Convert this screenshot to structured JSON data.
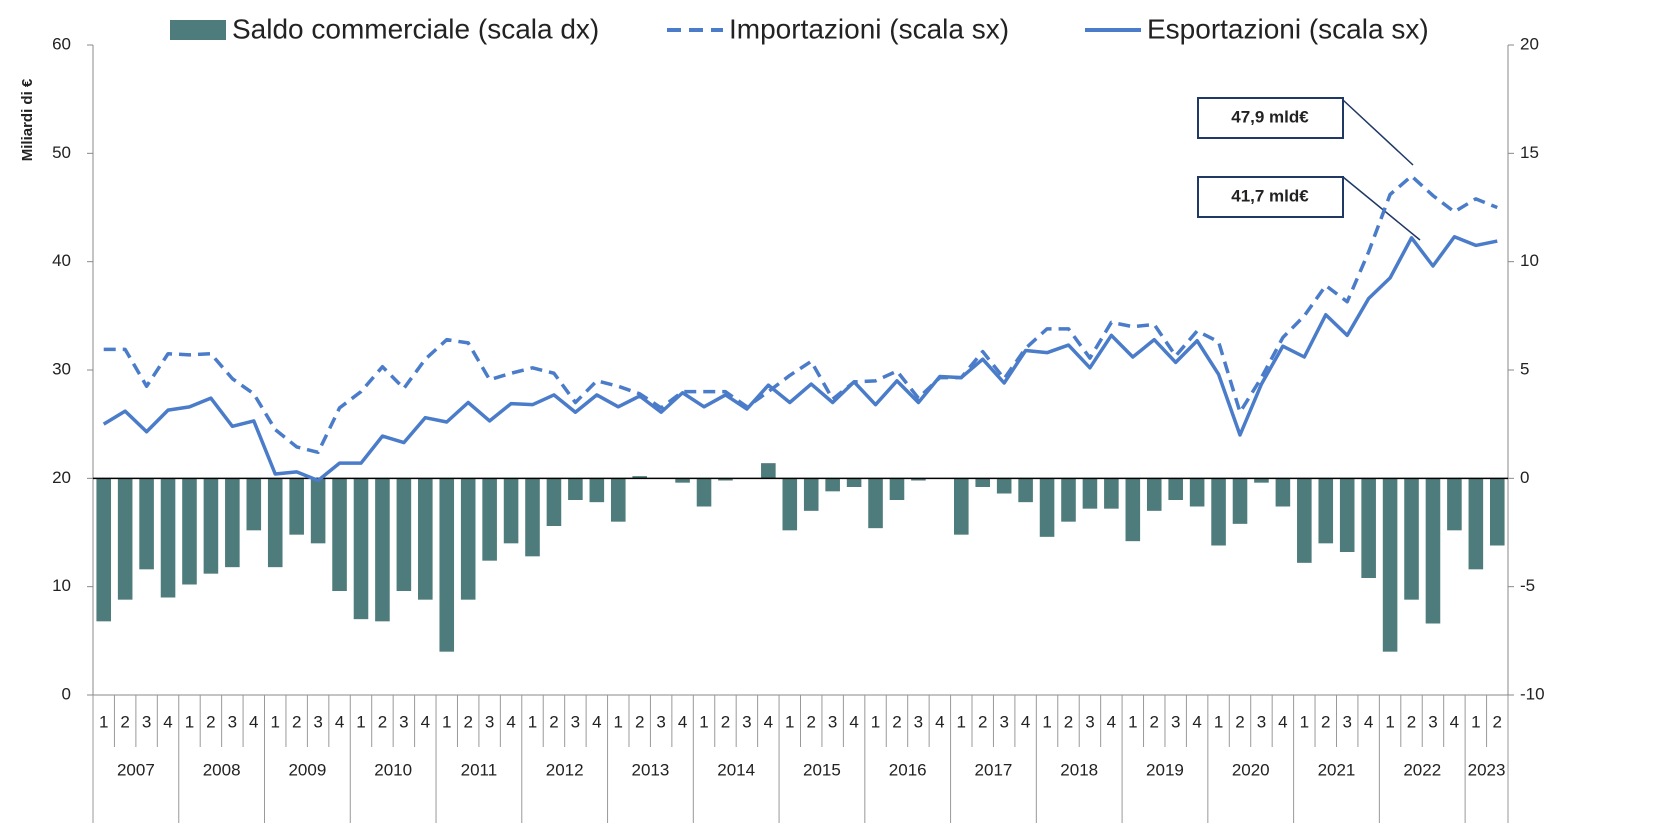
{
  "chart_data": {
    "type": "combo",
    "y_label": "Miliardi di €",
    "categories": [
      "1",
      "2",
      "3",
      "4",
      "1",
      "2",
      "3",
      "4",
      "1",
      "2",
      "3",
      "4",
      "1",
      "2",
      "3",
      "4",
      "1",
      "2",
      "3",
      "4",
      "1",
      "2",
      "3",
      "4",
      "1",
      "2",
      "3",
      "4",
      "1",
      "2",
      "3",
      "4",
      "1",
      "2",
      "3",
      "4",
      "1",
      "2",
      "3",
      "4",
      "1",
      "2",
      "3",
      "4",
      "1",
      "2",
      "3",
      "4",
      "1",
      "2",
      "3",
      "4",
      "1",
      "2",
      "3",
      "4",
      "1",
      "2",
      "3",
      "4",
      "1",
      "2",
      "3",
      "4",
      "1",
      "2"
    ],
    "years": [
      "2007",
      "2008",
      "2009",
      "2010",
      "2011",
      "2012",
      "2013",
      "2014",
      "2015",
      "2016",
      "2017",
      "2018",
      "2019",
      "2020",
      "2021",
      "2022",
      "2023"
    ],
    "series": [
      {
        "name": "Saldo commerciale (scala dx)",
        "type": "bar",
        "axis": "y2",
        "color": "#4e7b7b",
        "values": [
          -6.6,
          -5.6,
          -4.2,
          -5.5,
          -4.9,
          -4.4,
          -4.1,
          -2.4,
          -4.1,
          -2.6,
          -3.0,
          -5.2,
          -6.5,
          -6.6,
          -5.2,
          -5.6,
          -8.0,
          -5.6,
          -3.8,
          -3.0,
          -3.6,
          -2.2,
          -1.0,
          -1.1,
          -2.0,
          0.1,
          0.0,
          -0.2,
          -1.3,
          -0.1,
          0.0,
          0.7,
          -2.4,
          -1.5,
          -0.6,
          -0.4,
          -2.3,
          -1.0,
          -0.1,
          0.0,
          -2.6,
          -0.4,
          -0.7,
          -1.1,
          -2.7,
          -2.0,
          -1.4,
          -1.4,
          -2.9,
          -1.5,
          -1.0,
          -1.3,
          -3.1,
          -2.1,
          -0.2,
          -1.3,
          -3.9,
          -3.0,
          -3.4,
          -4.6,
          -8.0,
          -5.6,
          -6.7,
          -2.4,
          -4.2,
          -3.1
        ]
      },
      {
        "name": "Importazioni (scala sx)",
        "type": "line",
        "dashed": true,
        "color": "#4a7cc9",
        "values": [
          31.9,
          31.9,
          28.5,
          31.5,
          31.4,
          31.5,
          29.2,
          27.8,
          24.5,
          22.9,
          22.4,
          26.5,
          28.0,
          30.3,
          28.3,
          31.0,
          32.8,
          32.5,
          29.1,
          29.7,
          30.2,
          29.7,
          27.0,
          29.0,
          28.5,
          27.8,
          26.5,
          28.0,
          28.0,
          28.0,
          26.6,
          28.0,
          29.5,
          30.8,
          27.3,
          28.9,
          29.0,
          29.9,
          27.4,
          29.3,
          29.3,
          31.7,
          29.2,
          32.0,
          33.8,
          33.8,
          31.1,
          34.4,
          34.0,
          34.2,
          31.3,
          33.6,
          32.6,
          26.1,
          29.3,
          33.0,
          35.0,
          37.8,
          36.3,
          40.9,
          46.2,
          47.9,
          46.1,
          44.6,
          45.8,
          45.0
        ]
      },
      {
        "name": "Esportazioni (scala sx)",
        "type": "line",
        "dashed": false,
        "color": "#4a7cc9",
        "values": [
          25.0,
          26.2,
          24.3,
          26.3,
          26.6,
          27.4,
          24.8,
          25.3,
          20.4,
          20.6,
          19.8,
          21.4,
          21.4,
          23.9,
          23.3,
          25.6,
          25.2,
          27.0,
          25.3,
          26.9,
          26.8,
          27.7,
          26.1,
          27.7,
          26.6,
          27.6,
          26.1,
          27.9,
          26.6,
          27.7,
          26.4,
          28.6,
          27.0,
          28.7,
          27.0,
          28.9,
          26.8,
          29.0,
          27.0,
          29.4,
          29.3,
          31.0,
          28.8,
          31.8,
          31.6,
          32.3,
          30.2,
          33.2,
          31.2,
          32.8,
          30.7,
          32.7,
          29.6,
          24.0,
          28.7,
          32.2,
          31.2,
          35.1,
          33.2,
          36.6,
          38.5,
          42.2,
          39.6,
          42.3,
          41.5,
          41.9
        ]
      }
    ],
    "annotations": [
      "47,9 mld€",
      "41,7 mld€"
    ],
    "ylim": [
      0,
      60
    ],
    "yticks": [
      0,
      10,
      20,
      30,
      40,
      50,
      60
    ],
    "y2lim": [
      -10,
      20
    ],
    "y2ticks": [
      -10,
      -5,
      0,
      5,
      10,
      15,
      20
    ]
  }
}
